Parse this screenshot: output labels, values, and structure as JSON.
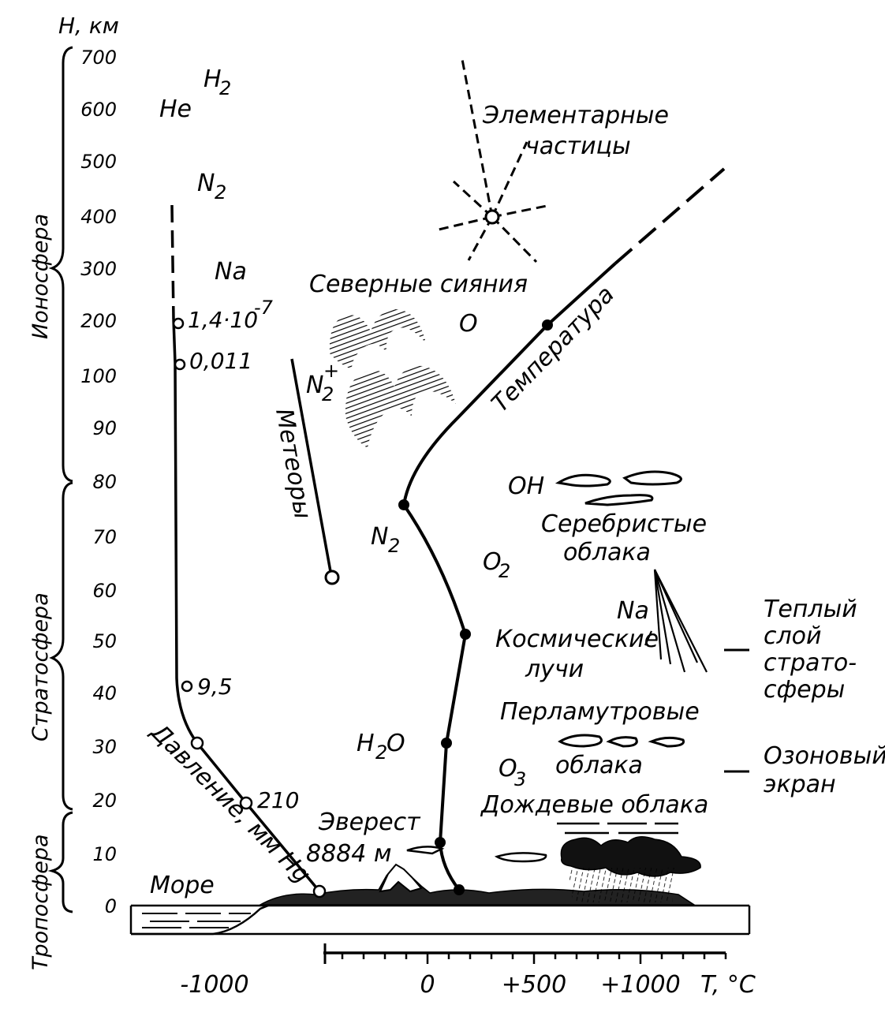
{
  "axes": {
    "y_title": "H, км",
    "x_title": "T, °C",
    "y_ticks": [
      "700",
      "600",
      "500",
      "400",
      "300",
      "200",
      "100",
      "90",
      "80",
      "70",
      "60",
      "50",
      "40",
      "30",
      "20",
      "10",
      "0"
    ],
    "x_ticks": [
      "-1000",
      "0",
      "+500",
      "+1000"
    ]
  },
  "layers": {
    "ionosphere": "Ионосфера",
    "stratosphere": "Стратосфера",
    "troposphere": "Тропосфера"
  },
  "gases": {
    "h2": "H",
    "h2_sub": "2",
    "he": "He",
    "n2": "N",
    "n2_sub": "2",
    "na": "Na",
    "o": "O",
    "n2plus": "N",
    "n2plus_sub": "2",
    "n2plus_sup": "+",
    "n2_mid": "N",
    "n2_mid_sub": "2",
    "o2": "O",
    "o2_sub": "2",
    "oh": "OH",
    "na_low": "Na",
    "h2o": "H",
    "h2o_sub": "2",
    "h2o_tail": "O",
    "o3": "O",
    "o3_sub": "3"
  },
  "pressure": {
    "label": "Давление, мм Hg",
    "values": [
      "1,4·10",
      "-7",
      "0,011",
      "9,5",
      "210"
    ]
  },
  "labels": {
    "elementary_1": "Элементарные",
    "elementary_2": "частицы",
    "aurora": "Северные сияния",
    "temperature": "Температура",
    "meteors": "Метеоры",
    "silvery_1": "Серебристые",
    "silvery_2": "облака",
    "cosmic_1": "Космические",
    "cosmic_2": "лучи",
    "pearl_1": "Перламутровые",
    "pearl_2": "облака",
    "rain": "Дождевые облака",
    "everest_1": "Эверест",
    "everest_2": "8884 м",
    "sea": "Море",
    "warm_1": "Теплый",
    "warm_2": "слой",
    "warm_3": "страто-",
    "warm_4": "сферы",
    "ozone_1": "Озоновый",
    "ozone_2": "экран"
  },
  "chart_data": {
    "type": "line",
    "ylabel": "H, км",
    "xlabel": "T, °C",
    "y_scale": "piecewise: 0–100 km linear, 100–700 km compressed",
    "series": [
      {
        "name": "Температура",
        "x": [
          15,
          -56,
          -56,
          0,
          -90,
          350,
          700,
          1100
        ],
        "y": [
          0,
          11,
          30,
          50,
          76,
          190,
          300,
          480
        ],
        "note": "solid to ~300 km, dashed above"
      },
      {
        "name": "Давление, мм Hg",
        "y": [
          0,
          20,
          30,
          40,
          120,
          200,
          420
        ],
        "labels_at_points": [
          "",
          "210",
          "",
          "9,5",
          "0,011",
          "1,4·10-7",
          ""
        ]
      }
    ]
  }
}
